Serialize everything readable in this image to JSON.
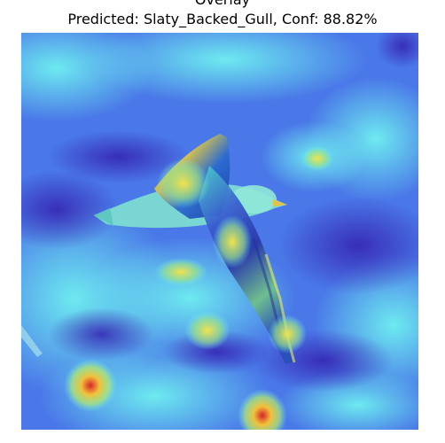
{
  "figure": {
    "title_line1": "Overlay",
    "title_line2": "Predicted: Slaty_Backed_Gull, Conf: 88.82%"
  },
  "image": {
    "subject": "gull-in-flight",
    "overlay": "attention-heatmap",
    "colors": {
      "base_blue": "#3f6fe6",
      "cyan": "#5ee3ee",
      "hot_yellow": "#f3e24a",
      "hot_red": "#e03b2a",
      "deep_violet": "#3b2bb8"
    }
  }
}
